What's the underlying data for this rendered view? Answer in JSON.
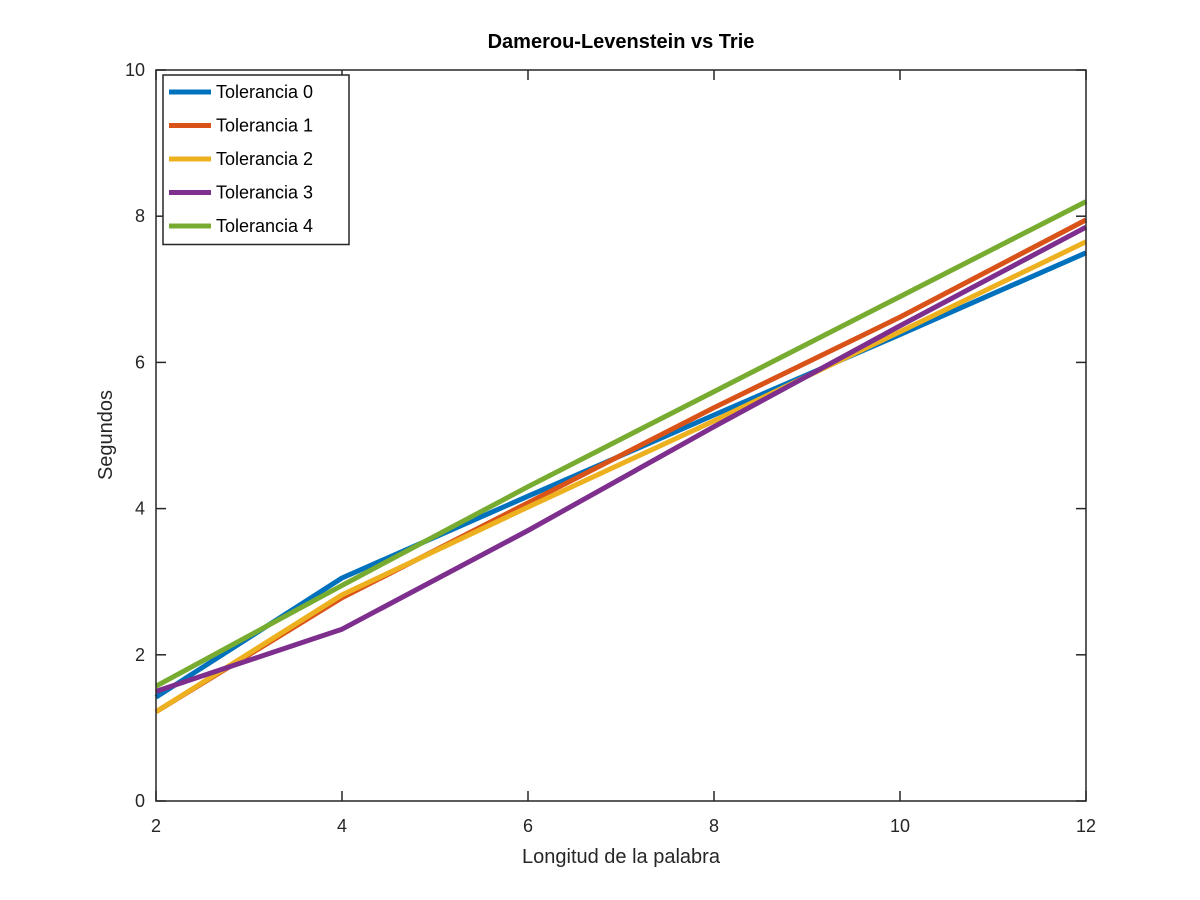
{
  "chart_data": {
    "type": "line",
    "title": "Damerou-Levenstein vs Trie",
    "xlabel": "Longitud de la palabra",
    "ylabel": "Segundos",
    "xlim": [
      2,
      12
    ],
    "ylim": [
      0,
      10
    ],
    "xticks": [
      "2",
      "4",
      "6",
      "8",
      "10",
      "12"
    ],
    "yticks": [
      "0",
      "2",
      "4",
      "6",
      "8",
      "10"
    ],
    "grid": false,
    "legend_position": "top-left",
    "x": [
      2,
      4,
      6,
      8,
      10,
      12
    ],
    "series": [
      {
        "name": "Tolerancia 0",
        "color": "#0072BD",
        "values": [
          1.42,
          3.05,
          4.17,
          5.28,
          6.38,
          7.5
        ]
      },
      {
        "name": "Tolerancia 1",
        "color": "#D95319",
        "values": [
          1.22,
          2.78,
          4.08,
          5.38,
          6.62,
          7.95
        ]
      },
      {
        "name": "Tolerancia 2",
        "color": "#EDB120",
        "values": [
          1.22,
          2.82,
          4.02,
          5.2,
          6.42,
          7.65
        ]
      },
      {
        "name": "Tolerancia 3",
        "color": "#7E2F8E",
        "values": [
          1.5,
          2.35,
          3.7,
          5.12,
          6.5,
          7.85
        ]
      },
      {
        "name": "Tolerancia 4",
        "color": "#77AC30",
        "values": [
          1.57,
          2.95,
          4.3,
          5.6,
          6.9,
          8.2
        ]
      }
    ]
  }
}
